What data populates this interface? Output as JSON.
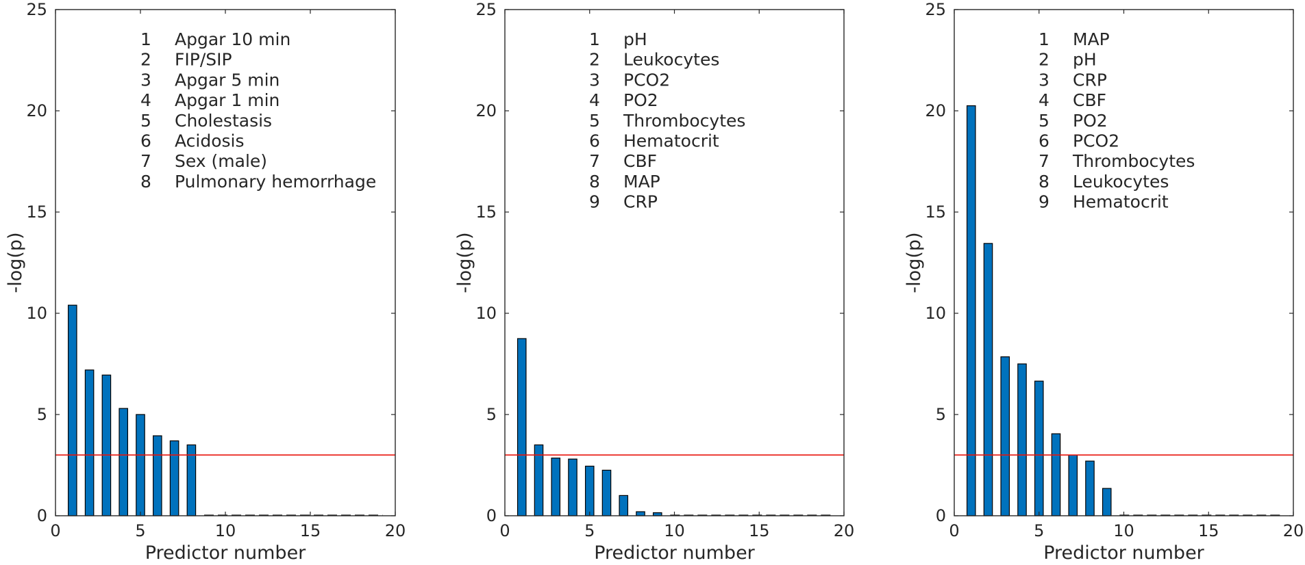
{
  "chart_data": [
    {
      "type": "bar",
      "xlabel": "Predictor number",
      "ylabel": "-log(p)",
      "xlim": [
        0,
        20
      ],
      "ylim": [
        0,
        25
      ],
      "xticks": [
        "0",
        "5",
        "10",
        "15",
        "20"
      ],
      "yticks": [
        "0",
        "5",
        "10",
        "15",
        "20",
        "25"
      ],
      "x": [
        1,
        2,
        3,
        4,
        5,
        6,
        7,
        8
      ],
      "values": [
        10.4,
        7.2,
        6.95,
        5.3,
        5.0,
        3.95,
        3.7,
        3.5
      ],
      "threshold": 3.0,
      "legend": [
        {
          "num": "1",
          "label": "Apgar 10 min"
        },
        {
          "num": "2",
          "label": "FIP/SIP"
        },
        {
          "num": "3",
          "label": "Apgar 5 min"
        },
        {
          "num": "4",
          "label": "Apgar 1 min"
        },
        {
          "num": "5",
          "label": "Cholestasis"
        },
        {
          "num": "6",
          "label": "Acidosis"
        },
        {
          "num": "7",
          "label": "Sex (male)"
        },
        {
          "num": "8",
          "label": "Pulmonary hemorrhage"
        }
      ]
    },
    {
      "type": "bar",
      "xlabel": "Predictor number",
      "ylabel": "-log(p)",
      "xlim": [
        0,
        20
      ],
      "ylim": [
        0,
        25
      ],
      "xticks": [
        "0",
        "5",
        "10",
        "15",
        "20"
      ],
      "yticks": [
        "0",
        "5",
        "10",
        "15",
        "20",
        "25"
      ],
      "x": [
        1,
        2,
        3,
        4,
        5,
        6,
        7,
        8,
        9
      ],
      "values": [
        8.75,
        3.5,
        2.85,
        2.8,
        2.45,
        2.25,
        1.0,
        0.2,
        0.15
      ],
      "threshold": 3.0,
      "legend": [
        {
          "num": "1",
          "label": "pH"
        },
        {
          "num": "2",
          "label": "Leukocytes"
        },
        {
          "num": "3",
          "label": "PCO2"
        },
        {
          "num": "4",
          "label": "PO2"
        },
        {
          "num": "5",
          "label": "Thrombocytes"
        },
        {
          "num": "6",
          "label": "Hematocrit"
        },
        {
          "num": "7",
          "label": "CBF"
        },
        {
          "num": "8",
          "label": "MAP"
        },
        {
          "num": "9",
          "label": "CRP"
        }
      ]
    },
    {
      "type": "bar",
      "xlabel": "Predictor number",
      "ylabel": "-log(p)",
      "xlim": [
        0,
        20
      ],
      "ylim": [
        0,
        25
      ],
      "xticks": [
        "0",
        "5",
        "10",
        "15",
        "20"
      ],
      "yticks": [
        "0",
        "5",
        "10",
        "15",
        "20",
        "25"
      ],
      "x": [
        1,
        2,
        3,
        4,
        5,
        6,
        7,
        8,
        9
      ],
      "values": [
        20.25,
        13.45,
        7.85,
        7.5,
        6.65,
        4.05,
        3.0,
        2.7,
        1.35
      ],
      "threshold": 3.0,
      "legend": [
        {
          "num": "1",
          "label": "MAP"
        },
        {
          "num": "2",
          "label": "pH"
        },
        {
          "num": "3",
          "label": "CRP"
        },
        {
          "num": "4",
          "label": "CBF"
        },
        {
          "num": "5",
          "label": "PO2"
        },
        {
          "num": "6",
          "label": "PCO2"
        },
        {
          "num": "7",
          "label": "Thrombocytes"
        },
        {
          "num": "8",
          "label": "Leukocytes"
        },
        {
          "num": "9",
          "label": "Hematocrit"
        }
      ]
    }
  ],
  "colors": {
    "bar_fill": "#0072bd",
    "bar_edge": "#000000",
    "threshold_line": "#e8150d",
    "axis": "#262626"
  }
}
